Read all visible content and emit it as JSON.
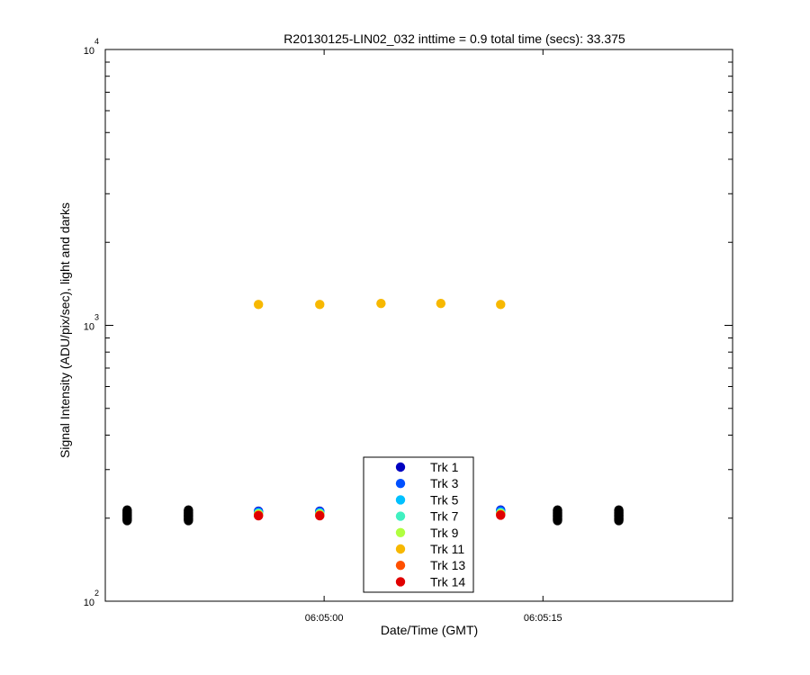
{
  "chart_data": {
    "type": "scatter",
    "title": "R20130125-LIN02_032 inttime = 0.9 total time (secs): 33.375",
    "xlabel": "Date/Time (GMT)",
    "ylabel": "Signal Intensity (ADU/pix/sec), light and darks",
    "y_scale": "log",
    "ylim": [
      100,
      10000
    ],
    "xlim": [
      "06:04:45",
      "06:05:28"
    ],
    "x_ticks": [
      "06:05:00",
      "06:05:15"
    ],
    "y_ticks": [
      {
        "base": "10",
        "exp": "2",
        "value": 100
      },
      {
        "base": "10",
        "exp": "3",
        "value": 1000
      },
      {
        "base": "10",
        "exp": "4",
        "value": 10000
      }
    ],
    "legend_position": "bottom-center",
    "series": [
      {
        "name": "Trk 1",
        "color": "#0000c0",
        "x": [
          "06:04:55.5",
          "06:04:59.7",
          "06:05:12.1"
        ],
        "y": [
          212,
          212,
          214
        ]
      },
      {
        "name": "Trk 3",
        "color": "#0050ff",
        "x": [
          "06:04:55.5",
          "06:04:59.7",
          "06:05:12.1"
        ],
        "y": [
          211,
          211,
          213
        ]
      },
      {
        "name": "Trk 5",
        "color": "#00c0ff",
        "x": [
          "06:04:55.5",
          "06:04:59.7",
          "06:05:12.1"
        ],
        "y": [
          209,
          209,
          210
        ]
      },
      {
        "name": "Trk 7",
        "color": "#40f0c0",
        "x": [
          "06:04:55.5",
          "06:04:59.7",
          "06:05:12.1"
        ],
        "y": [
          208,
          208,
          209
        ]
      },
      {
        "name": "Trk 9",
        "color": "#b0ff40",
        "x": [
          "06:04:55.5",
          "06:04:59.7",
          "06:05:12.1"
        ],
        "y": [
          207,
          207,
          208
        ]
      },
      {
        "name": "Trk 11",
        "color": "#f7b800",
        "x": [
          "06:04:55.5",
          "06:04:59.7",
          "06:05:03.9",
          "06:05:08.0",
          "06:05:12.1"
        ],
        "y": [
          1190,
          1190,
          1200,
          1200,
          1190
        ]
      },
      {
        "name": "Trk 13",
        "color": "#ff5000",
        "x": [
          "06:04:55.5",
          "06:04:59.7",
          "06:05:12.1"
        ],
        "y": [
          205,
          205,
          206
        ]
      },
      {
        "name": "Trk 14",
        "color": "#e00000",
        "x": [
          "06:04:55.5",
          "06:04:59.7",
          "06:05:12.1"
        ],
        "y": [
          204,
          204,
          205
        ]
      }
    ],
    "darks": {
      "color": "#000000",
      "x": [
        "06:04:46.5",
        "06:04:50.7",
        "06:05:16.0",
        "06:05:20.2"
      ],
      "y_range": [
        196,
        214
      ]
    }
  }
}
